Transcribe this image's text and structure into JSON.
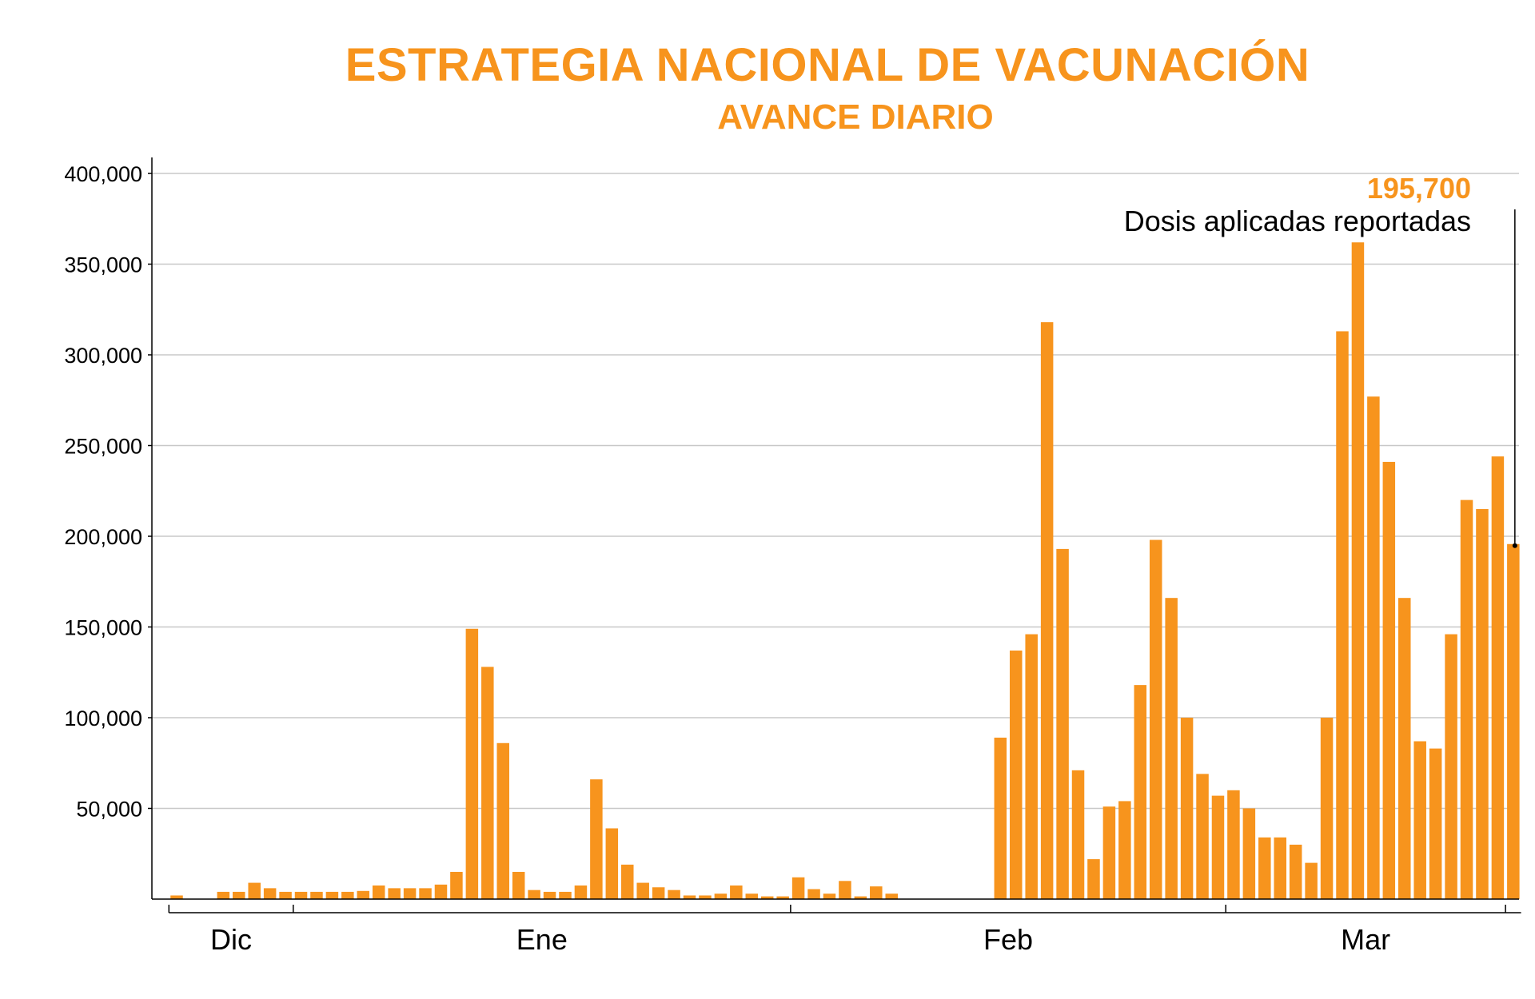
{
  "colors": {
    "bar": "#F7941D",
    "grid": "#c8c8c8",
    "axis": "#000000"
  },
  "chart_data": {
    "type": "bar",
    "title": "ESTRATEGIA NACIONAL DE VACUNACIÓN",
    "subtitle": "AVANCE DIARIO",
    "xlabel": "",
    "ylabel": "",
    "ylim": [
      0,
      400000
    ],
    "yticks": [
      50000,
      100000,
      150000,
      200000,
      250000,
      300000,
      350000,
      400000
    ],
    "ytick_labels": [
      "50,000",
      "100,000",
      "150,000",
      "200,000",
      "250,000",
      "300,000",
      "350,000",
      "400,000"
    ],
    "grid": true,
    "month_labels": [
      {
        "label": "Dic",
        "start": 0,
        "end": 8
      },
      {
        "label": "Ene",
        "start": 8,
        "end": 40
      },
      {
        "label": "Feb",
        "start": 40,
        "end": 68
      },
      {
        "label": "Mar",
        "start": 68,
        "end": 86
      }
    ],
    "values": [
      2000,
      0,
      0,
      4000,
      4000,
      9000,
      6000,
      4000,
      4000,
      4000,
      4000,
      4000,
      4500,
      7500,
      6000,
      6000,
      6000,
      8000,
      15000,
      149000,
      128000,
      86000,
      15000,
      5000,
      4000,
      4000,
      7500,
      66000,
      39000,
      19000,
      9000,
      6500,
      5000,
      2000,
      2000,
      3000,
      7500,
      3000,
      1500,
      1500,
      12000,
      5500,
      3000,
      10000,
      1500,
      7000,
      3000,
      0,
      0,
      0,
      0,
      0,
      0,
      89000,
      137000,
      146000,
      318000,
      193000,
      71000,
      22000,
      51000,
      54000,
      118000,
      198000,
      166000,
      100000,
      69000,
      57000,
      60000,
      50000,
      34000,
      34000,
      30000,
      20000,
      100000,
      313000,
      362000,
      277000,
      241000,
      166000,
      87000,
      83000,
      146000,
      220000,
      215000,
      244000,
      195700
    ],
    "annotation": {
      "value": "195,700",
      "label": "Dosis aplicadas reportadas",
      "index": 86
    }
  }
}
